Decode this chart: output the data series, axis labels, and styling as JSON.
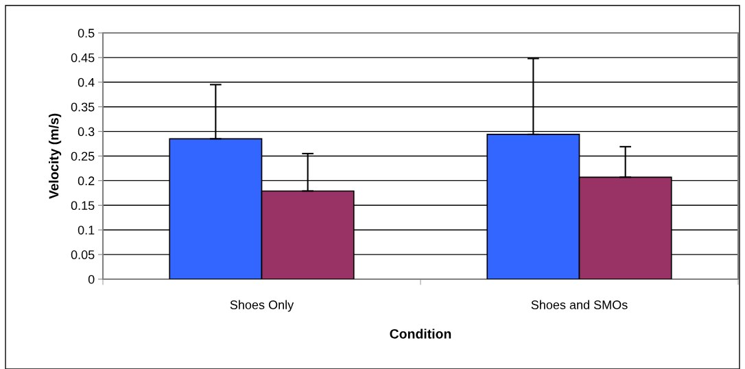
{
  "chart_data": {
    "type": "bar",
    "xlabel": "Condition",
    "ylabel": "Velocity (m/s)",
    "categories": [
      "Shoes Only",
      "Shoes and SMOs"
    ],
    "series": [
      {
        "color": "#3366ff",
        "values": [
          0.285,
          0.294
        ],
        "errors": [
          [
            0.285,
            0.395
          ],
          [
            0.294,
            0.448
          ]
        ]
      },
      {
        "color": "#993366",
        "values": [
          0.179,
          0.207
        ],
        "errors": [
          [
            0.179,
            0.255
          ],
          [
            0.207,
            0.269
          ]
        ]
      }
    ],
    "ylim": [
      0,
      0.5
    ],
    "yticks": [
      0,
      0.05,
      0.1,
      0.15,
      0.2,
      0.25,
      0.3,
      0.35,
      0.4,
      0.45,
      0.5
    ],
    "grid": "y",
    "legend": false
  }
}
